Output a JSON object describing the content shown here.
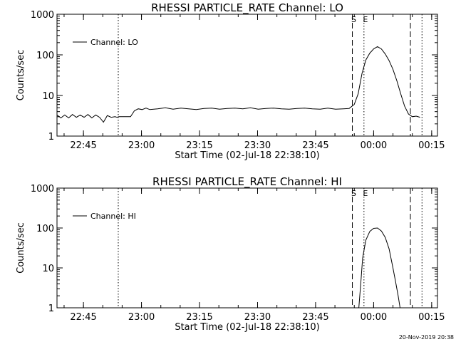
{
  "footer_timestamp": "20-Nov-2019 20:38",
  "chart_data": [
    {
      "type": "line",
      "title": "RHESSI PARTICLE_RATE Channel: LO",
      "ylabel": "Counts/sec",
      "xlabel": "Start Time (02-Jul-18 22:38:10)",
      "y_scale": "log",
      "ylim": [
        1,
        1000
      ],
      "xlim": [
        "22:38:10",
        "00:16:30"
      ],
      "x_ticks": [
        "22:45",
        "23:00",
        "23:15",
        "23:30",
        "23:45",
        "00:00",
        "00:15"
      ],
      "y_ticks": [
        "1",
        "10",
        "100",
        "1000"
      ],
      "legend_position": "top-left",
      "series": [
        {
          "name": "Channel: LO",
          "x": [
            "22:38:10",
            "22:39:10",
            "22:40:10",
            "22:41:10",
            "22:42:10",
            "22:43:10",
            "22:44:10",
            "22:45:10",
            "22:46:10",
            "22:47:10",
            "22:48:10",
            "22:49:10",
            "22:50:10",
            "22:51:10",
            "22:52:10",
            "22:53:10",
            "22:53:40",
            "22:54:10",
            "22:55:10",
            "22:56:10",
            "22:57:10",
            "22:58:10",
            "22:59:10",
            "23:00:10",
            "23:01:10",
            "23:02:10",
            "23:04:10",
            "23:06:10",
            "23:08:10",
            "23:10:10",
            "23:12:10",
            "23:14:10",
            "23:16:10",
            "23:18:10",
            "23:20:10",
            "23:22:10",
            "23:24:10",
            "23:26:10",
            "23:28:10",
            "23:30:10",
            "23:32:10",
            "23:34:10",
            "23:36:10",
            "23:38:10",
            "23:40:10",
            "23:42:10",
            "23:44:10",
            "23:46:10",
            "23:48:10",
            "23:50:10",
            "23:52:10",
            "23:53:40",
            "23:55:00",
            "23:56:00",
            "23:57:00",
            "23:58:00",
            "23:59:00",
            "00:00:00",
            "00:01:00",
            "00:02:00",
            "00:03:00",
            "00:04:00",
            "00:05:00",
            "00:06:00",
            "00:07:00",
            "00:08:00",
            "00:09:00",
            "00:10:00",
            "00:11:00",
            "00:12:00"
          ],
          "y": [
            3.3,
            2.8,
            3.3,
            2.8,
            3.4,
            2.9,
            3.3,
            2.9,
            3.4,
            2.8,
            3.3,
            2.9,
            2.2,
            3.2,
            2.9,
            3,
            2.9,
            3,
            3,
            3,
            3,
            4.2,
            4.7,
            4.5,
            4.9,
            4.5,
            4.7,
            5,
            4.6,
            4.9,
            4.7,
            4.5,
            4.8,
            4.9,
            4.6,
            4.8,
            4.9,
            4.7,
            5,
            4.6,
            4.8,
            4.9,
            4.7,
            4.6,
            4.8,
            4.9,
            4.7,
            4.6,
            4.9,
            4.6,
            4.7,
            4.8,
            6,
            11,
            35,
            75,
            110,
            140,
            160,
            140,
            105,
            72,
            44,
            23,
            11,
            5.5,
            3.5,
            3,
            3.1,
            2.9
          ]
        }
      ],
      "vlines": [
        {
          "x": "22:54:00",
          "style": "dotted"
        },
        {
          "x": "23:54:30",
          "style": "dashed",
          "label": "S"
        },
        {
          "x": "23:57:30",
          "style": "dotted",
          "label": "E"
        },
        {
          "x": "00:09:30",
          "style": "dashed"
        },
        {
          "x": "00:12:30",
          "style": "dotted"
        }
      ]
    },
    {
      "type": "line",
      "title": "RHESSI PARTICLE_RATE Channel: HI",
      "ylabel": "Counts/sec",
      "xlabel": "Start Time (02-Jul-18 22:38:10)",
      "y_scale": "log",
      "ylim": [
        1,
        1000
      ],
      "xlim": [
        "22:38:10",
        "00:16:30"
      ],
      "x_ticks": [
        "22:45",
        "23:00",
        "23:15",
        "23:30",
        "23:45",
        "00:00",
        "00:15"
      ],
      "y_ticks": [
        "1",
        "10",
        "100",
        "1000"
      ],
      "legend_position": "top-left",
      "series": [
        {
          "name": "Channel: HI",
          "x": [
            "23:56:10",
            "23:56:40",
            "23:57:10",
            "23:58:00",
            "23:59:00",
            "00:00:00",
            "00:01:00",
            "00:02:00",
            "00:03:00",
            "00:04:00",
            "00:05:00",
            "00:05:40",
            "00:06:20",
            "00:06:50"
          ],
          "y": [
            1,
            4,
            18,
            50,
            82,
            98,
            100,
            84,
            58,
            30,
            10,
            4.5,
            2,
            1
          ]
        }
      ],
      "vlines": [
        {
          "x": "22:54:00",
          "style": "dotted"
        },
        {
          "x": "23:54:30",
          "style": "dashed",
          "label": "S"
        },
        {
          "x": "23:57:30",
          "style": "dotted",
          "label": "E"
        },
        {
          "x": "00:09:30",
          "style": "dashed"
        },
        {
          "x": "00:12:30",
          "style": "dotted"
        }
      ]
    }
  ]
}
